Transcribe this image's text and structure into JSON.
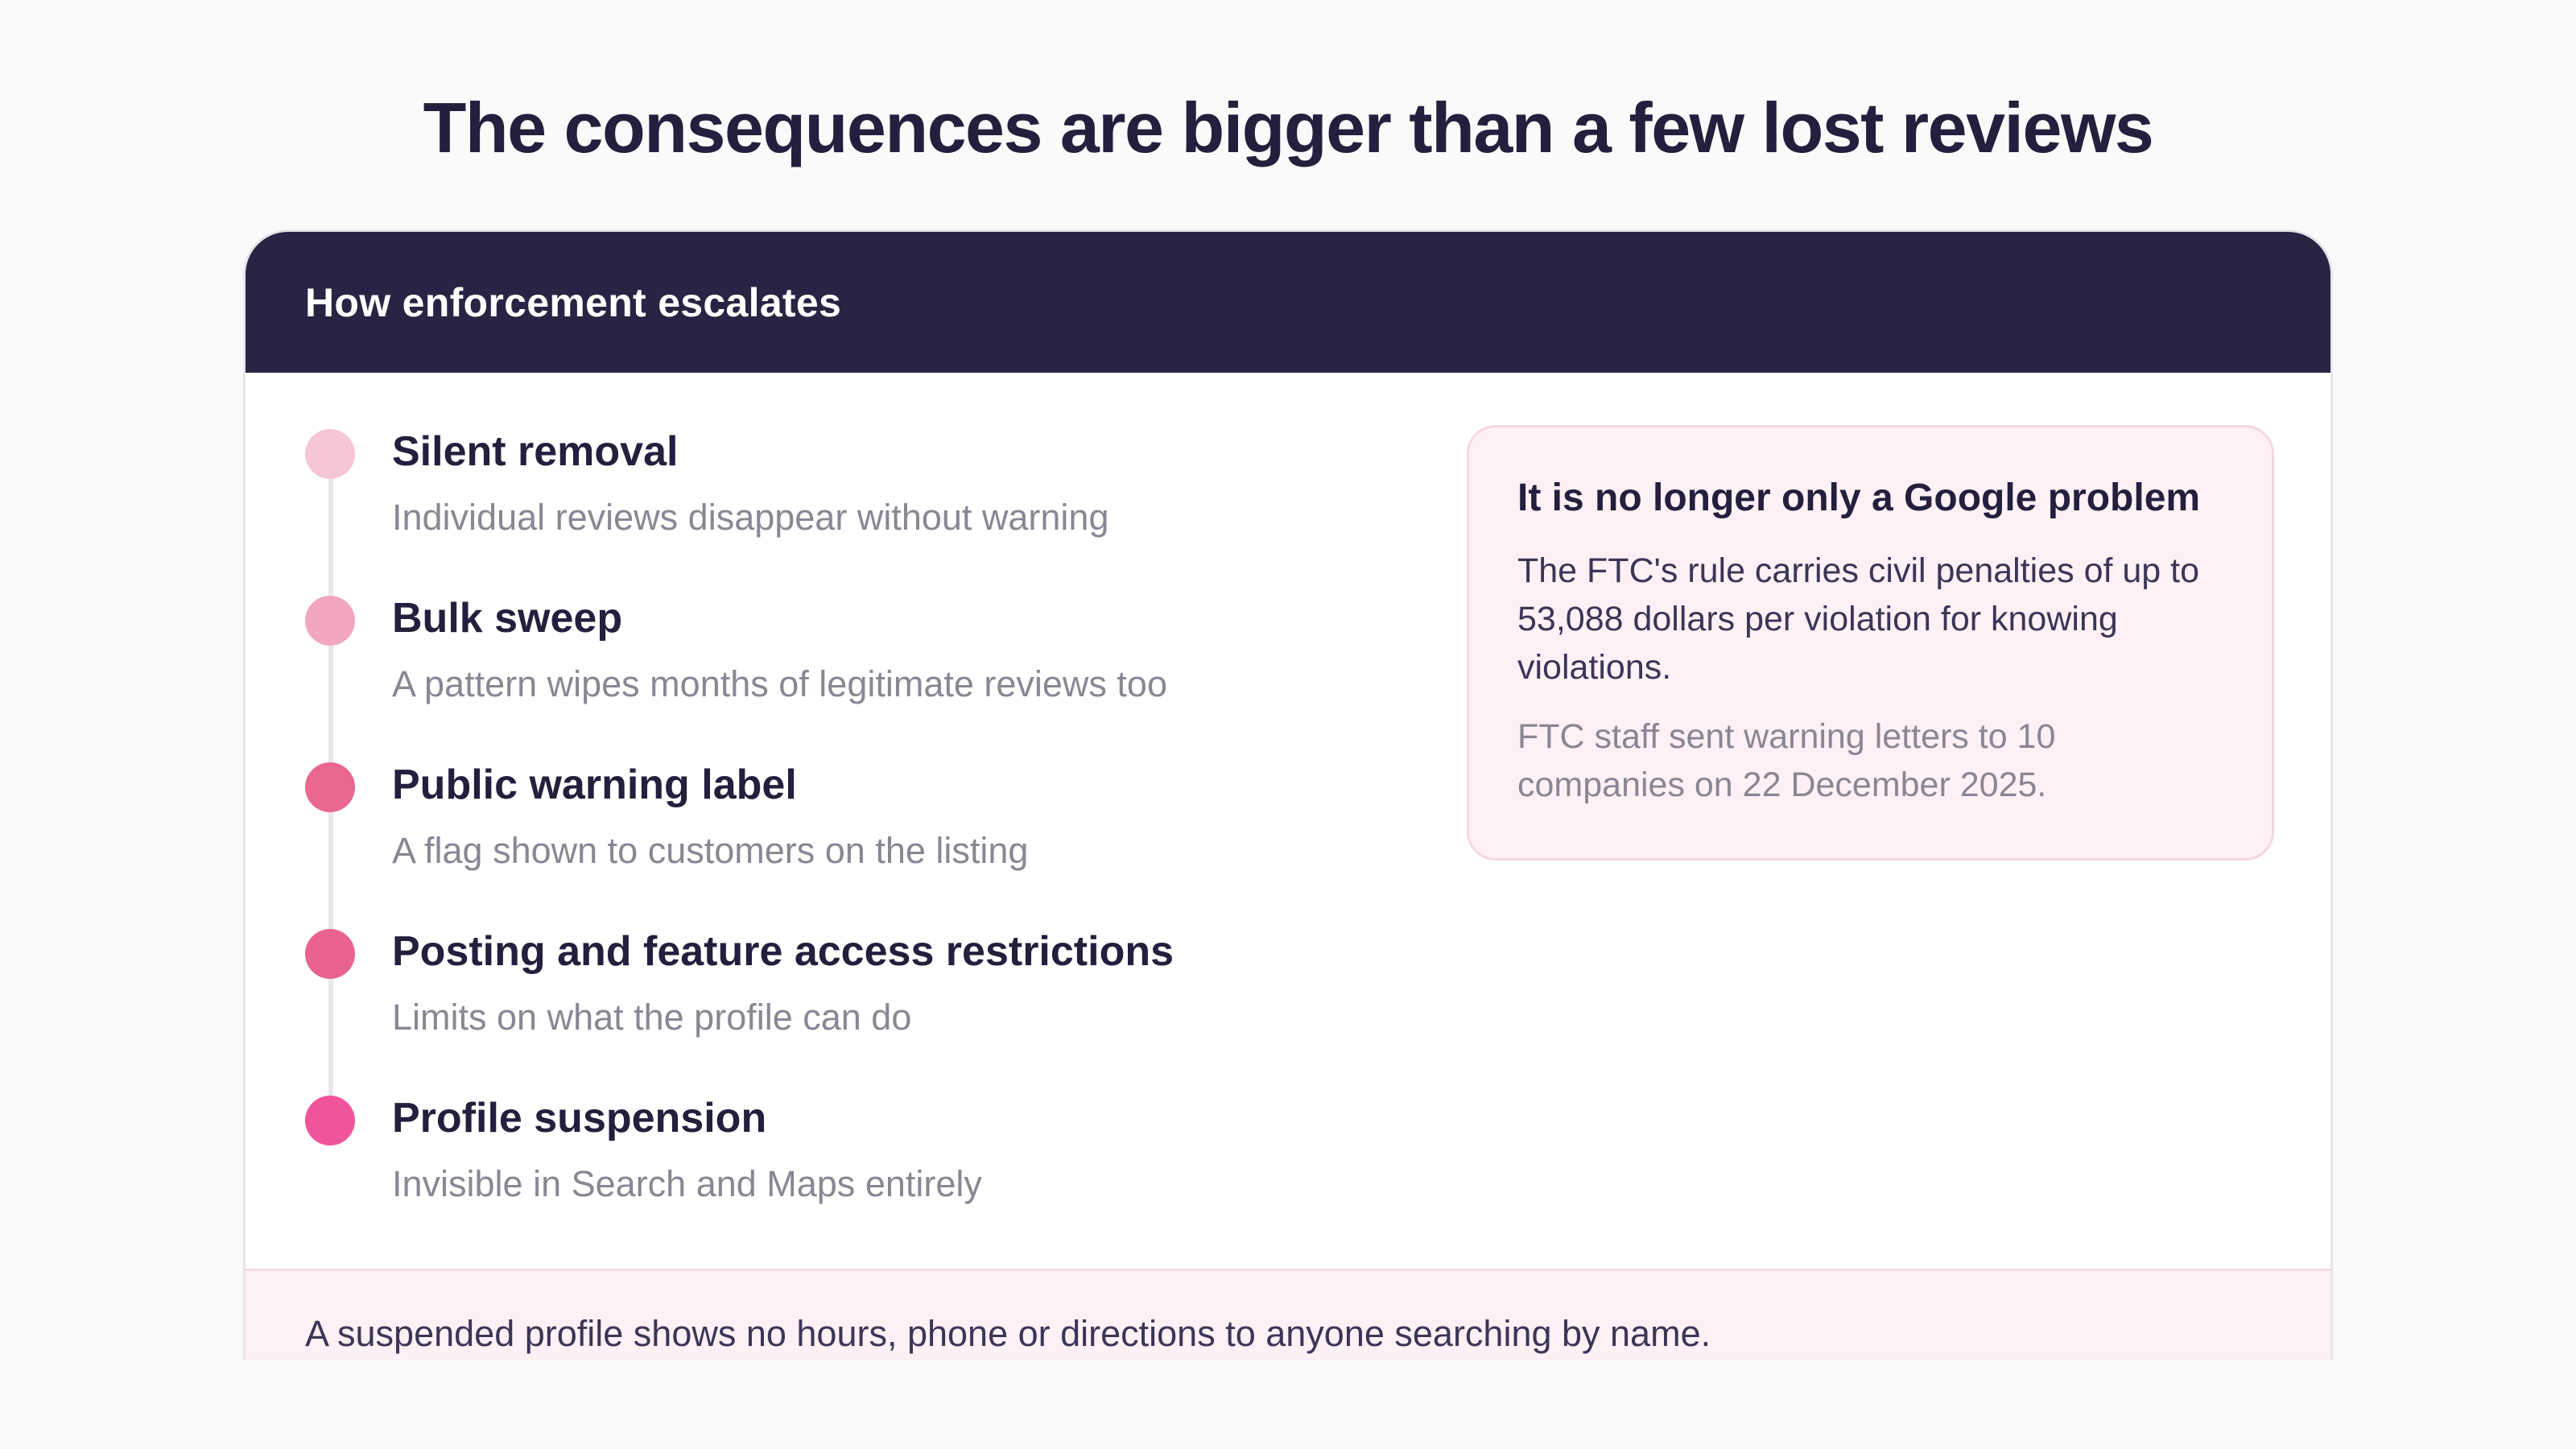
{
  "page": {
    "title": "The consequences are bigger than a few lost reviews"
  },
  "card": {
    "header": "How enforcement escalates",
    "steps": [
      {
        "title": "Silent removal",
        "description": "Individual reviews disappear without warning",
        "dot_color": "#f6c6d8"
      },
      {
        "title": "Bulk sweep",
        "description": "A pattern wipes months of legitimate reviews too",
        "dot_color": "#f2a6c0"
      },
      {
        "title": "Public warning label",
        "description": "A flag shown to customers on the listing",
        "dot_color": "#ea6790"
      },
      {
        "title": "Posting and feature access restrictions",
        "description": "Limits on what the profile can do",
        "dot_color": "#e96390"
      },
      {
        "title": "Profile suspension",
        "description": "Invisible in Search and Maps entirely",
        "dot_color": "#f0549a"
      }
    ],
    "callout": {
      "title": "It is no longer only a Google problem",
      "body": "The FTC's rule carries civil penalties of up to 53,088 dollars per violation for knowing violations.",
      "note": "FTC staff sent warning letters to 10 companies on 22 December 2025."
    },
    "footer": "A suspended profile shows no hours, phone or directions to anyone searching by name."
  },
  "colors": {
    "header_bg": "#2a2343",
    "title_text": "#231f3d",
    "muted_text": "#8a8694",
    "callout_bg": "#fff0f5"
  }
}
